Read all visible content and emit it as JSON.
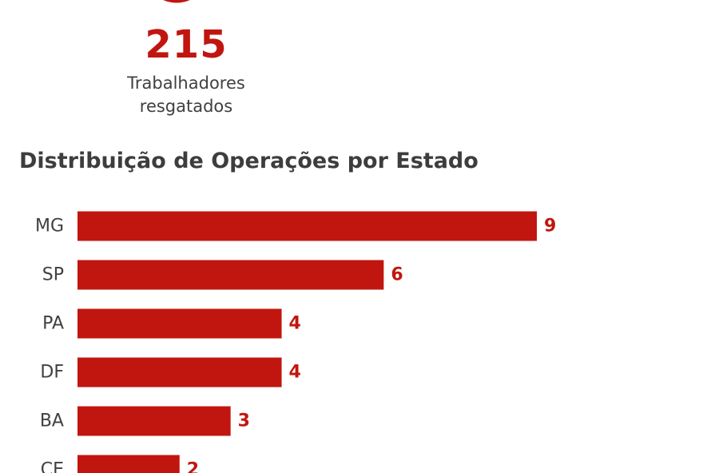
{
  "stat": {
    "value": "215",
    "label_line1": "Trabalhadores",
    "label_line2": "resgatados"
  },
  "colors": {
    "accent": "#c1160f",
    "text": "#3d3d3d"
  },
  "chart_data": {
    "type": "bar",
    "orientation": "horizontal",
    "title": "Distribuição de Operações por Estado",
    "categories": [
      "MG",
      "SP",
      "PA",
      "DF",
      "BA",
      "CE"
    ],
    "values": [
      9,
      6,
      4,
      4,
      3,
      2
    ],
    "xlim": [
      0,
      9
    ],
    "xlabel": "",
    "ylabel": "",
    "grid": false,
    "legend": "none"
  }
}
